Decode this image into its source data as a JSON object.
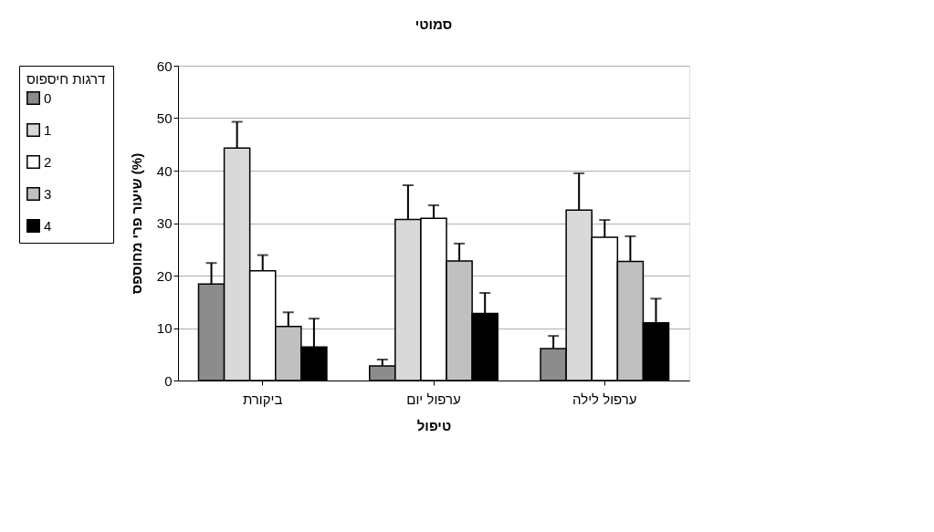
{
  "chart_data": {
    "type": "bar",
    "title": "סמוטי",
    "xlabel": "טיפול",
    "ylabel": "שיעור  פרי מחוספס (%)",
    "legend_title": "דרגות חיספוס",
    "categories": [
      "ביקורת",
      "ערפול יום",
      "ערפול לילה"
    ],
    "series": [
      {
        "name": "0",
        "color": "#8c8c8c",
        "values": [
          18.4,
          2.8,
          6.1
        ],
        "errors": [
          4.0,
          1.2,
          2.4
        ]
      },
      {
        "name": "1",
        "color": "#d9d9d9",
        "values": [
          44.3,
          30.7,
          32.5
        ],
        "errors": [
          5.0,
          6.5,
          7.0
        ]
      },
      {
        "name": "2",
        "color": "#ffffff",
        "values": [
          20.9,
          30.9,
          27.3
        ],
        "errors": [
          3.0,
          2.5,
          3.3
        ]
      },
      {
        "name": "3",
        "color": "#c0c0c0",
        "values": [
          10.3,
          22.8,
          22.7
        ],
        "errors": [
          2.7,
          3.3,
          4.8
        ]
      },
      {
        "name": "4",
        "color": "#000000",
        "values": [
          6.4,
          12.8,
          11.0
        ],
        "errors": [
          5.4,
          3.9,
          4.6
        ]
      }
    ],
    "ylim": [
      0,
      60
    ],
    "yticks": [
      0,
      10,
      20,
      30,
      40,
      50,
      60
    ],
    "grid": "y",
    "legend": "left"
  }
}
